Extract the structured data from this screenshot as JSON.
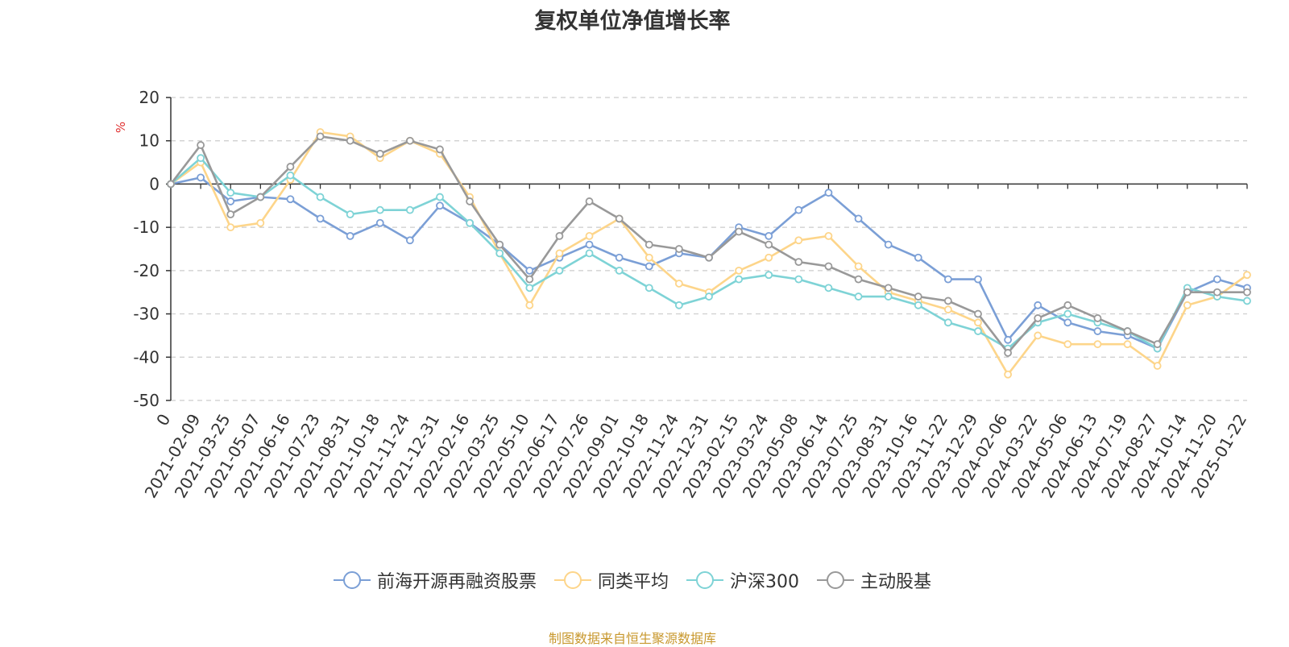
{
  "chart_data": {
    "type": "line",
    "title": "复权单位净值增长率",
    "ylabel": "%",
    "ylim": [
      -50,
      20
    ],
    "yticks": [
      "20",
      "10",
      "0",
      "-10",
      "-20",
      "-30",
      "-40",
      "-50"
    ],
    "x_tick_labels": [
      "0",
      "2021-02-09",
      "2021-03-25",
      "2021-05-07",
      "2021-06-16",
      "2021-07-23",
      "2021-08-31",
      "2021-10-18",
      "2021-11-24",
      "2021-12-31",
      "2022-02-16",
      "2022-03-25",
      "2022-05-10",
      "2022-06-17",
      "2022-07-26",
      "2022-09-01",
      "2022-10-18",
      "2022-11-24",
      "2022-12-31",
      "2023-02-15",
      "2023-03-24",
      "2023-05-08",
      "2023-06-14",
      "2023-07-25",
      "2023-08-31",
      "2023-10-16",
      "2023-11-22",
      "2023-12-29",
      "2024-02-06",
      "2024-03-22",
      "2024-05-06",
      "2024-06-13",
      "2024-07-19",
      "2024-08-27",
      "2024-10-14",
      "2024-11-20",
      "2025-01-22"
    ],
    "x": [
      "2021-01-01",
      "2021-02-09",
      "2021-03-25",
      "2021-05-07",
      "2021-06-16",
      "2021-07-23",
      "2021-08-31",
      "2021-10-18",
      "2021-11-24",
      "2021-12-31",
      "2022-02-16",
      "2022-03-25",
      "2022-05-10",
      "2022-06-17",
      "2022-07-26",
      "2022-09-01",
      "2022-10-18",
      "2022-11-24",
      "2022-12-31",
      "2023-02-15",
      "2023-03-24",
      "2023-05-08",
      "2023-06-14",
      "2023-07-25",
      "2023-08-31",
      "2023-10-16",
      "2023-11-22",
      "2023-12-29",
      "2024-02-06",
      "2024-03-22",
      "2024-05-06",
      "2024-06-13",
      "2024-07-19",
      "2024-08-27",
      "2024-10-14",
      "2024-11-20",
      "2025-01-22"
    ],
    "series": [
      {
        "name": "前海开源再融资股票",
        "color": "#7b9fd6",
        "values": [
          0,
          1.5,
          -4,
          -3,
          -3.5,
          -8,
          -12,
          -9,
          -13,
          -5,
          -9,
          -14,
          -20,
          -17,
          -14,
          -17,
          -19,
          -16,
          -17,
          -10,
          -12,
          -6,
          -2,
          -8,
          -14,
          -17,
          -22,
          -22,
          -36,
          -28,
          -32,
          -34,
          -35,
          -38,
          -25,
          -22,
          -24
        ]
      },
      {
        "name": "同类平均",
        "color": "#fdd58a",
        "values": [
          0,
          5,
          -10,
          -9,
          1,
          12,
          11,
          6,
          10,
          7,
          -3,
          -16,
          -28,
          -16,
          -12,
          -8,
          -17,
          -23,
          -25,
          -20,
          -17,
          -13,
          -12,
          -19,
          -25,
          -27,
          -29,
          -32,
          -44,
          -35,
          -37,
          -37,
          -37,
          -42,
          -28,
          -26,
          -21
        ]
      },
      {
        "name": "沪深300",
        "color": "#7ed3d6",
        "values": [
          0,
          6,
          -2,
          -3,
          2,
          -3,
          -7,
          -6,
          -6,
          -3,
          -9,
          -16,
          -24,
          -20,
          -16,
          -20,
          -24,
          -28,
          -26,
          -22,
          -21,
          -22,
          -24,
          -26,
          -26,
          -28,
          -32,
          -34,
          -38,
          -32,
          -30,
          -32,
          -34,
          -38,
          -24,
          -26,
          -27
        ]
      },
      {
        "name": "主动股基",
        "color": "#999999",
        "values": [
          0,
          9,
          -7,
          -3,
          4,
          11,
          10,
          7,
          10,
          8,
          -4,
          -14,
          -22,
          -12,
          -4,
          -8,
          -14,
          -15,
          -17,
          -11,
          -14,
          -18,
          -19,
          -22,
          -24,
          -26,
          -27,
          -30,
          -39,
          -31,
          -28,
          -31,
          -34,
          -37,
          -25,
          -25,
          -25
        ]
      }
    ],
    "grid": "horizontal dashed",
    "legend": "bottom"
  },
  "footer": {
    "source": "制图数据来自恒生聚源数据库"
  }
}
